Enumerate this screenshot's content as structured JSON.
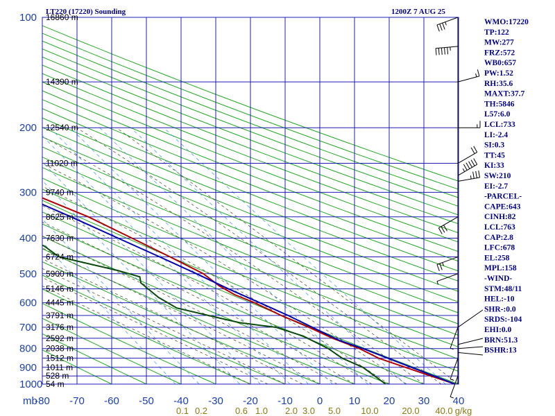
{
  "header": {
    "title": "LT220 (17220) Sounding",
    "datetime": "1200Z  7 AUG 25"
  },
  "indices": [
    "WMO:17220",
    "TP:122",
    "MW:277",
    "FRZ:572",
    "WB0:657",
    "PW:1.52",
    "RH:35.6",
    "MAXT:37.7",
    "TH:5846",
    "L57:6.0",
    "LCL:733",
    "LI:-2.4",
    "SI:0.3",
    "TT:45",
    "KI:33",
    "SW:210",
    "EI:-2.7",
    "-PARCEL-",
    "CAPE:643",
    "CINH:82",
    "LCL:763",
    "CAP:2.8",
    "LFC:678",
    "EL:258",
    "MPL:158",
    "-WIND-",
    "STM:48/11",
    "HEL:-10",
    "SHR-:0.0",
    "SRDS:-104",
    "EHI:0.0",
    "BRN:51.3",
    "BSHR:13"
  ],
  "colors": {
    "isobar": "#1c1cb4",
    "isotherm": "#1c1cb4",
    "dry_adiabat": "#22aa22",
    "moist_adiabat": "#555533",
    "mixing_ratio": "#4aa0e0",
    "temperature": "#b30000",
    "dewpoint": "#0a4a0a",
    "parcel": "#0000b0",
    "wind_barb": "#000000"
  },
  "chart_data": {
    "type": "skew-t",
    "x_axis_unit_label": "mb",
    "pressure_levels": [
      100,
      200,
      300,
      400,
      500,
      600,
      700,
      800,
      900,
      1000
    ],
    "secondary_pressure_lines": [
      150,
      250,
      350,
      450,
      550,
      650,
      750,
      850,
      950
    ],
    "temperature_ticks": [
      -80,
      -70,
      -60,
      -50,
      -40,
      -30,
      -20,
      -10,
      0,
      10,
      20,
      30,
      40
    ],
    "temperature_range": [
      -80,
      40
    ],
    "pressure_range": [
      1000,
      100
    ],
    "mixing_ratio_labels": [
      "0.1",
      "0.2",
      "0.6",
      "1.0",
      "2.0",
      "3.0",
      "5.0",
      "10.0",
      "20.0",
      "40.0",
      "g/kg"
    ],
    "height_labels": [
      {
        "p": 100,
        "label": "16860 m"
      },
      {
        "p": 150,
        "label": "14390 m"
      },
      {
        "p": 200,
        "label": "12540 m"
      },
      {
        "p": 250,
        "label": "11020 m"
      },
      {
        "p": 300,
        "label": "9740 m"
      },
      {
        "p": 350,
        "label": "8625 m"
      },
      {
        "p": 400,
        "label": "7630 m"
      },
      {
        "p": 450,
        "label": "6724 m"
      },
      {
        "p": 500,
        "label": "5900 m"
      },
      {
        "p": 550,
        "label": "5146 m"
      },
      {
        "p": 600,
        "label": "4445 m"
      },
      {
        "p": 650,
        "label": "3791 m"
      },
      {
        "p": 700,
        "label": "3176 m"
      },
      {
        "p": 750,
        "label": "2592 m"
      },
      {
        "p": 800,
        "label": "2038 m"
      },
      {
        "p": 850,
        "label": "1512 m"
      },
      {
        "p": 900,
        "label": "1011 m"
      },
      {
        "p": 950,
        "label": "528 m"
      },
      {
        "p": 1000,
        "label": "54 m"
      }
    ],
    "series": [
      {
        "name": "temperature",
        "points": [
          [
            1000,
            39
          ],
          [
            925,
            31
          ],
          [
            850,
            22.5
          ],
          [
            800,
            19
          ],
          [
            750,
            13.5
          ],
          [
            700,
            9
          ],
          [
            650,
            3.5
          ],
          [
            600,
            -1.5
          ],
          [
            570,
            -5.5
          ],
          [
            540,
            -8
          ],
          [
            500,
            -10
          ],
          [
            450,
            -16
          ],
          [
            400,
            -23
          ],
          [
            350,
            -31
          ],
          [
            300,
            -43
          ],
          [
            250,
            -52
          ],
          [
            200,
            -60
          ],
          [
            150,
            -68
          ],
          [
            120,
            -72
          ],
          [
            100,
            -73
          ]
        ]
      },
      {
        "name": "dewpoint",
        "points": [
          [
            1000,
            19
          ],
          [
            900,
            16
          ],
          [
            850,
            12
          ],
          [
            800,
            10
          ],
          [
            740,
            5.5
          ],
          [
            700,
            -0.5
          ],
          [
            680,
            -10
          ],
          [
            660,
            -15
          ],
          [
            620,
            -25
          ],
          [
            580,
            -28
          ],
          [
            530,
            -30
          ],
          [
            510,
            -29
          ],
          [
            490,
            -34
          ],
          [
            450,
            -48
          ],
          [
            420,
            -50
          ],
          [
            400,
            -54
          ],
          [
            360,
            -63
          ]
        ]
      },
      {
        "name": "parcel",
        "points": [
          [
            1000,
            39
          ],
          [
            900,
            30
          ],
          [
            800,
            20
          ],
          [
            760,
            15
          ],
          [
            700,
            10
          ],
          [
            650,
            5.5
          ],
          [
            600,
            0
          ],
          [
            550,
            -6
          ],
          [
            500,
            -12
          ],
          [
            450,
            -19
          ],
          [
            400,
            -27
          ],
          [
            350,
            -36
          ],
          [
            300,
            -47
          ],
          [
            250,
            -58
          ],
          [
            200,
            -70
          ],
          [
            150,
            -82
          ],
          [
            120,
            -90
          ]
        ]
      }
    ],
    "wind_barbs": [
      {
        "p": 100,
        "dir": 250,
        "spd": 35
      },
      {
        "p": 120,
        "dir": 265,
        "spd": 55
      },
      {
        "p": 150,
        "dir": 75,
        "spd": 15
      },
      {
        "p": 200,
        "dir": 90,
        "spd": 15
      },
      {
        "p": 250,
        "dir": 60,
        "spd": 20
      },
      {
        "p": 270,
        "dir": 60,
        "spd": 55
      },
      {
        "p": 280,
        "dir": 80,
        "spd": 35
      },
      {
        "p": 350,
        "dir": 240,
        "spd": 30
      },
      {
        "p": 450,
        "dir": 250,
        "spd": 25
      },
      {
        "p": 500,
        "dir": 250,
        "spd": 5
      },
      {
        "p": 700,
        "dir": 200,
        "spd": 5
      },
      {
        "p": 850,
        "dir": 200,
        "spd": 5
      },
      {
        "p": 950,
        "dir": 200,
        "spd": 5
      }
    ],
    "grid": true
  }
}
